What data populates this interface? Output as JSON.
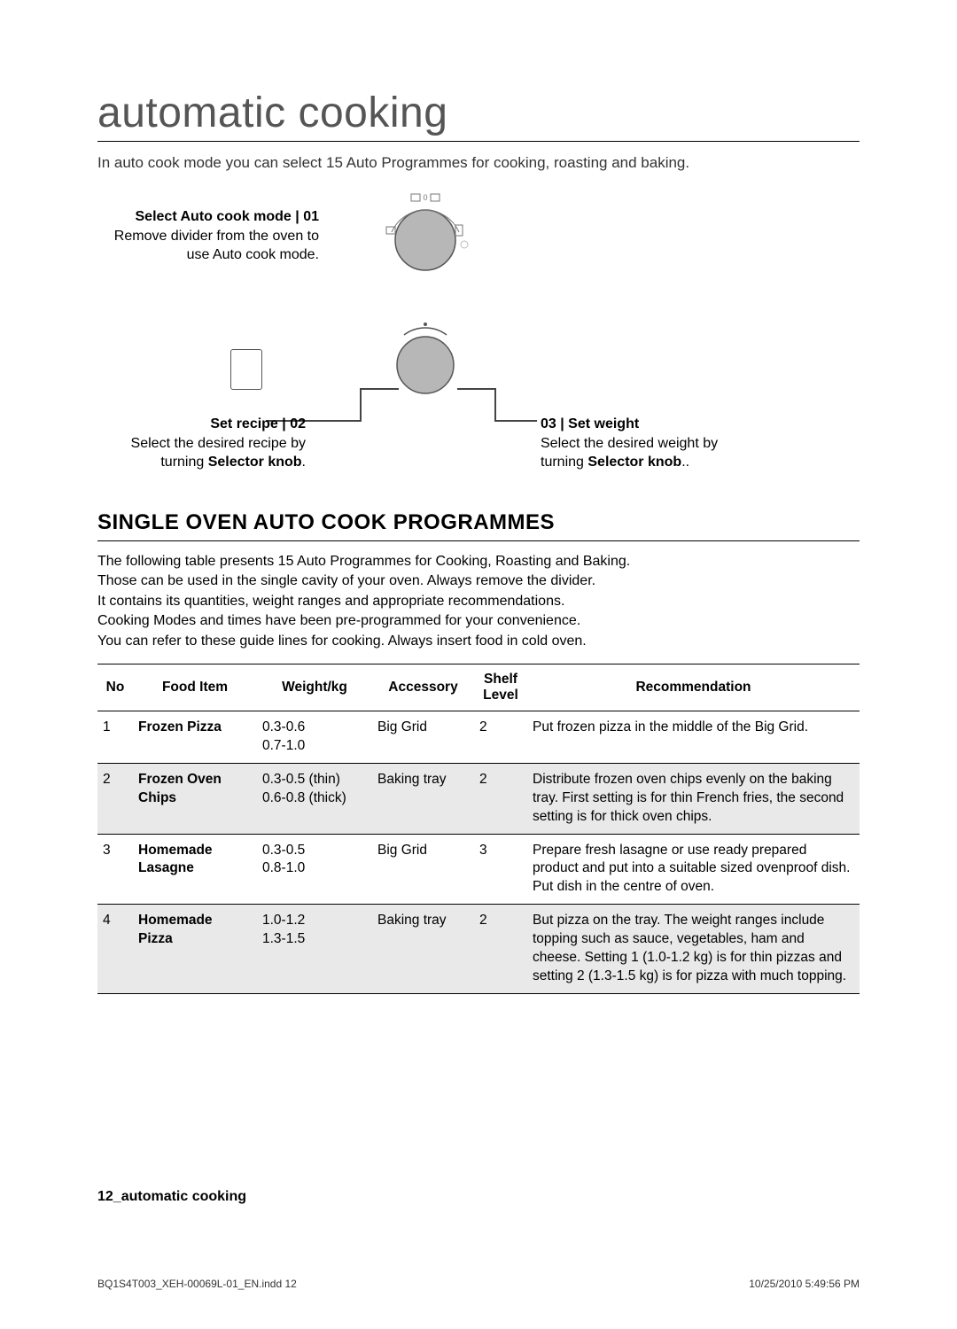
{
  "title": "automatic cooking",
  "intro": "In auto cook mode you can select 15 Auto Programmes for cooking, roasting and baking.",
  "step1": {
    "heading": "Select Auto cook mode | 01",
    "body": "Remove divider from the oven to use Auto cook mode."
  },
  "step2": {
    "heading": "Set recipe | 02",
    "body1": "Select the desired recipe by",
    "body2": "turning ",
    "bold": "Selector knob",
    "tail": "."
  },
  "step3": {
    "heading": "03 | Set weight",
    "body1": "Select the desired weight by",
    "body2": "turning ",
    "bold": "Selector knob",
    "tail": ".."
  },
  "section_heading": "SINGLE OVEN AUTO COOK PROGRAMMES",
  "table_intro_lines": [
    "The following table presents 15 Auto Programmes for Cooking, Roasting and Baking.",
    "Those can be used in the single cavity of your oven. Always remove the divider.",
    "It contains its quantities, weight ranges and appropriate recommendations.",
    "Cooking Modes and times have been pre-programmed for your convenience.",
    "You can refer to these guide lines for cooking. Always insert food in cold oven."
  ],
  "columns": {
    "no": "No",
    "food": "Food Item",
    "weight": "Weight/kg",
    "accessory": "Accessory",
    "shelf": "Shelf Level",
    "rec": "Recommendation"
  },
  "rows": [
    {
      "no": "1",
      "food": "Frozen Pizza",
      "weight": "0.3-0.6\n0.7-1.0",
      "accessory": "Big Grid",
      "shelf": "2",
      "rec": "Put frozen pizza in the middle of the Big Grid.",
      "shaded": false
    },
    {
      "no": "2",
      "food": "Frozen Oven Chips",
      "weight": "0.3-0.5 (thin)\n0.6-0.8 (thick)",
      "accessory": "Baking tray",
      "shelf": "2",
      "rec": "Distribute frozen oven chips evenly on the baking tray. First setting is for thin French fries, the second setting is for thick oven chips.",
      "shaded": true
    },
    {
      "no": "3",
      "food": "Homemade Lasagne",
      "weight": "0.3-0.5\n0.8-1.0",
      "accessory": "Big Grid",
      "shelf": "3",
      "rec": "Prepare fresh lasagne or use ready prepared product and put into a suitable sized ovenproof dish. Put dish in the centre of oven.",
      "shaded": false
    },
    {
      "no": "4",
      "food": "Homemade Pizza",
      "weight": "1.0-1.2\n1.3-1.5",
      "accessory": "Baking tray",
      "shelf": "2",
      "rec": "But pizza on the tray. The weight ranges include topping such as sauce, vegetables, ham and cheese. Setting 1 (1.0-1.2 kg) is for thin pizzas and setting 2 (1.3-1.5 kg) is for pizza with much topping.",
      "shaded": true
    }
  ],
  "footer_label": "12_automatic cooking",
  "footer_file": "BQ1S4T003_XEH-00069L-01_EN.indd   12",
  "footer_date": "10/25/2010   5:49:56 PM",
  "colors": {
    "dial_fill": "#b7b7b7",
    "dial_stroke": "#555555",
    "icon_stroke": "#777777"
  }
}
